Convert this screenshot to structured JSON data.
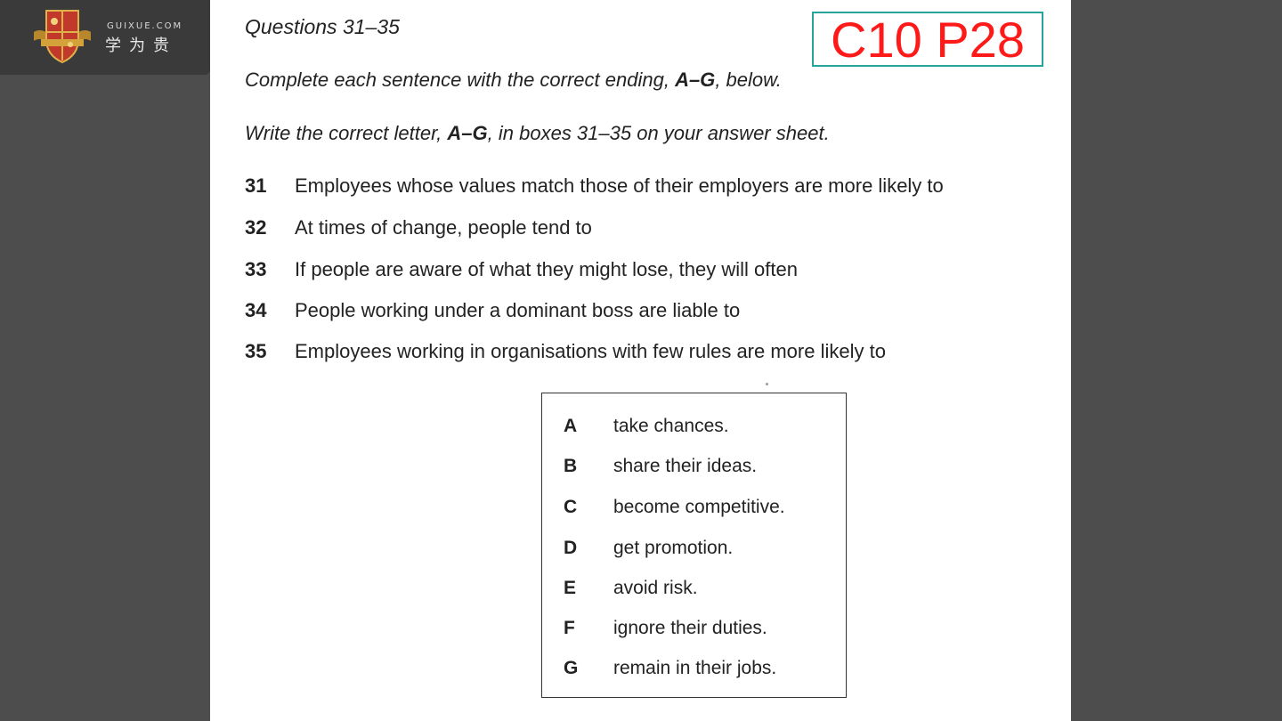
{
  "logo": {
    "domain": "GUIXUE.COM",
    "chinese": "学为贵"
  },
  "reference": "C10 P28",
  "heading": "Questions 31–35",
  "instructions": {
    "line1_pre": "Complete each sentence with the correct ending, ",
    "line1_bold": "A–G",
    "line1_post": ", below.",
    "line2_pre": "Write the correct letter, ",
    "line2_bold": "A–G",
    "line2_post": ", in boxes 31–35 on your answer sheet."
  },
  "questions": [
    {
      "num": "31",
      "text": "Employees whose values match those of their employers are more likely to"
    },
    {
      "num": "32",
      "text": "At times of change, people tend to"
    },
    {
      "num": "33",
      "text": "If people are aware of what they might lose, they will often"
    },
    {
      "num": "34",
      "text": "People working under a dominant boss are liable to"
    },
    {
      "num": "35",
      "text": "Employees working in organisations with few rules are more likely to"
    }
  ],
  "options": [
    {
      "letter": "A",
      "text": "take chances."
    },
    {
      "letter": "B",
      "text": "share their ideas."
    },
    {
      "letter": "C",
      "text": "become competitive."
    },
    {
      "letter": "D",
      "text": "get promotion."
    },
    {
      "letter": "E",
      "text": "avoid risk."
    },
    {
      "letter": "F",
      "text": "ignore their duties."
    },
    {
      "letter": "G",
      "text": "remain in their jobs."
    }
  ],
  "colors": {
    "background": "#4d4d4d",
    "page": "#ffffff",
    "ref_text": "#ff1a1a",
    "ref_border": "#27a59a"
  }
}
